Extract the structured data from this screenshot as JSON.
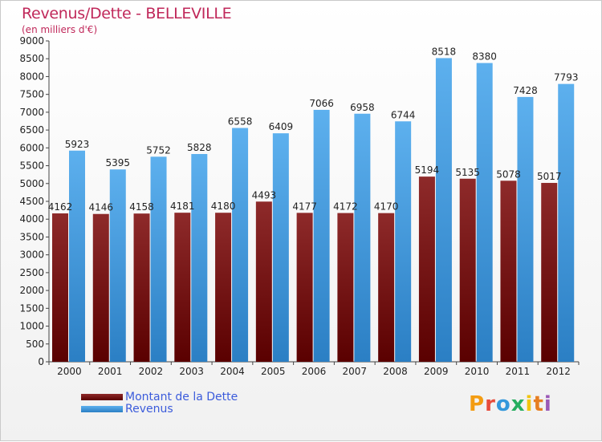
{
  "title": "Revenus/Dette - BELLEVILLE",
  "subtitle": "(en milliers d'€)",
  "logo": {
    "letters": [
      "P",
      "r",
      "o",
      "x",
      "i",
      "t",
      "i"
    ],
    "colors": [
      "#f39c12",
      "#e74c3c",
      "#3498db",
      "#27ae60",
      "#f1c40f",
      "#e67e22",
      "#9b59b6"
    ]
  },
  "legend": [
    {
      "label": "Montant de la Dette",
      "color": "#6b0a0a"
    },
    {
      "label": "Revenus",
      "color": "#4aa3e6"
    }
  ],
  "chart_data": {
    "type": "bar",
    "title": "Revenus/Dette - BELLEVILLE",
    "subtitle": "(en milliers d'€)",
    "categories": [
      "2000",
      "2001",
      "2002",
      "2003",
      "2004",
      "2005",
      "2006",
      "2007",
      "2008",
      "2009",
      "2010",
      "2011",
      "2012"
    ],
    "series": [
      {
        "name": "Montant de la Dette",
        "color": "#6b0a0a",
        "values": [
          4162,
          4146,
          4158,
          4181,
          4180,
          4493,
          4177,
          4172,
          4170,
          5194,
          5135,
          5078,
          5017
        ]
      },
      {
        "name": "Revenus",
        "color": "#4aa3e6",
        "values": [
          5923,
          5395,
          5752,
          5828,
          6558,
          6409,
          7066,
          6958,
          6744,
          8518,
          8380,
          7428,
          7793
        ]
      }
    ],
    "ylim": [
      0,
      9000
    ],
    "ytick_step": 500,
    "grid": false,
    "legend_position": "bottom-left"
  }
}
